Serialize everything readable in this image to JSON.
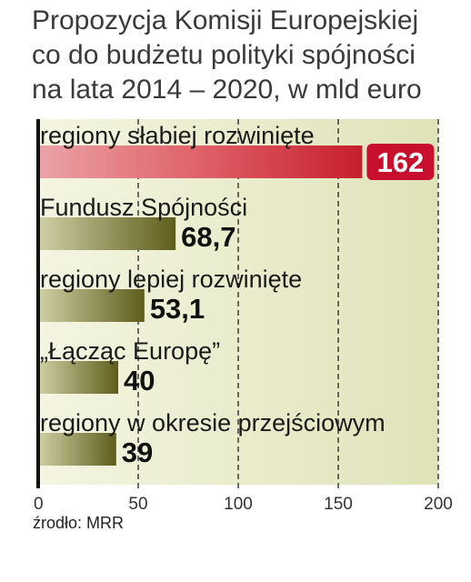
{
  "title_lines": [
    "Propozycja Komisji Europejskiej",
    "co do budżetu polityki spójności",
    "na lata 2014 – 2020, w mld euro"
  ],
  "source": "źrodło: MRR",
  "colors": {
    "highlight_bar": "#d6333d",
    "bar": "#6c6a22",
    "plot_background": "#e4e6c2",
    "value_badge": "#c8102e"
  },
  "chart_data": {
    "type": "bar",
    "orientation": "horizontal",
    "categories": [
      "regiony słabiej rozwinięte",
      "Fundusz Spójności",
      "regiony lepiej rozwinięte",
      "„Łącząc Europę”",
      "regiony w okresie przejściowym"
    ],
    "values": [
      162,
      68.7,
      53.1,
      40,
      39
    ],
    "value_labels": [
      "162",
      "68,7",
      "53,1",
      "40",
      "39"
    ],
    "highlight_index": 0,
    "xlim": [
      0,
      200
    ],
    "xticks": [
      0,
      50,
      100,
      150,
      200
    ],
    "grid": "vertical dashed",
    "title": "Propozycja Komisji Europejskiej co do budżetu polityki spójności na lata 2014 – 2020, w mld euro",
    "xlabel": "",
    "ylabel": ""
  }
}
